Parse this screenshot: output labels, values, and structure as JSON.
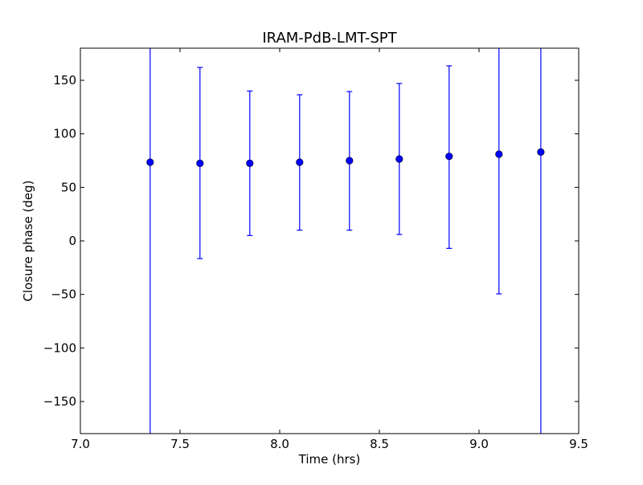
{
  "chart_data": {
    "type": "scatter",
    "title": "IRAM-PdB-LMT-SPT",
    "xlabel": "Time (hrs)",
    "ylabel": "Closure phase (deg)",
    "xlim": [
      7.0,
      9.5
    ],
    "ylim": [
      -180,
      180
    ],
    "xticks": [
      7.0,
      7.5,
      8.0,
      8.5,
      9.0,
      9.5
    ],
    "xtick_labels": [
      "7.0",
      "7.5",
      "8.0",
      "8.5",
      "9.0",
      "9.5"
    ],
    "yticks": [
      -150,
      -100,
      -50,
      0,
      50,
      100,
      150
    ],
    "ytick_labels": [
      "−150",
      "−100",
      "−50",
      "0",
      "50",
      "100",
      "150"
    ],
    "grid": false,
    "marker_color": "#0000ff",
    "errorbar_color": "#0000ff",
    "series": [
      {
        "points": [
          {
            "x": 7.35,
            "y": 73.5,
            "err_low": -180,
            "err_high": 180
          },
          {
            "x": 7.6,
            "y": 72.5,
            "err_low": -16.5,
            "err_high": 162
          },
          {
            "x": 7.85,
            "y": 72.5,
            "err_low": 5,
            "err_high": 140
          },
          {
            "x": 8.1,
            "y": 73.5,
            "err_low": 10,
            "err_high": 136.5
          },
          {
            "x": 8.35,
            "y": 75,
            "err_low": 10,
            "err_high": 139.5
          },
          {
            "x": 8.6,
            "y": 76.5,
            "err_low": 6,
            "err_high": 147
          },
          {
            "x": 8.85,
            "y": 79,
            "err_low": -7,
            "err_high": 163.5
          },
          {
            "x": 9.1,
            "y": 81,
            "err_low": -49.5,
            "err_high": 180
          },
          {
            "x": 9.31,
            "y": 83,
            "err_low": -180,
            "err_high": 180
          }
        ]
      }
    ]
  }
}
